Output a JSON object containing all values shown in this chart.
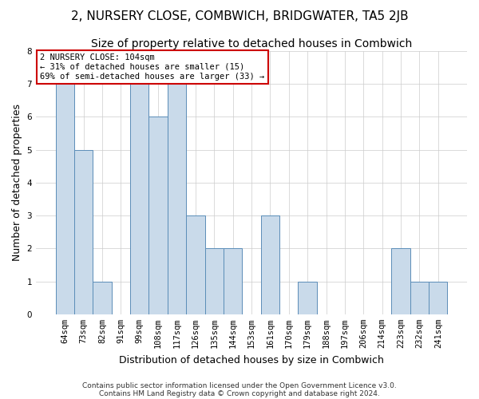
{
  "title": "2, NURSERY CLOSE, COMBWICH, BRIDGWATER, TA5 2JB",
  "subtitle": "Size of property relative to detached houses in Combwich",
  "xlabel": "Distribution of detached houses by size in Combwich",
  "ylabel": "Number of detached properties",
  "categories": [
    "64sqm",
    "73sqm",
    "82sqm",
    "91sqm",
    "99sqm",
    "108sqm",
    "117sqm",
    "126sqm",
    "135sqm",
    "144sqm",
    "153sqm",
    "161sqm",
    "170sqm",
    "179sqm",
    "188sqm",
    "197sqm",
    "206sqm",
    "214sqm",
    "223sqm",
    "232sqm",
    "241sqm"
  ],
  "values": [
    7,
    5,
    1,
    0,
    7,
    6,
    7,
    3,
    2,
    2,
    0,
    3,
    0,
    1,
    0,
    0,
    0,
    0,
    2,
    1,
    1
  ],
  "bar_color": "#c9daea",
  "bar_edge_color": "#5b8db8",
  "annotation_box_text": "2 NURSERY CLOSE: 104sqm\n← 31% of detached houses are smaller (15)\n69% of semi-detached houses are larger (33) →",
  "annotation_box_color": "#ffffff",
  "annotation_box_edge_color": "#cc0000",
  "ylim": [
    0,
    8
  ],
  "yticks": [
    0,
    1,
    2,
    3,
    4,
    5,
    6,
    7,
    8
  ],
  "footnote_line1": "Contains HM Land Registry data © Crown copyright and database right 2024.",
  "footnote_line2": "Contains public sector information licensed under the Open Government Licence v3.0.",
  "bg_color": "#ffffff",
  "grid_color": "#cccccc",
  "title_fontsize": 11,
  "subtitle_fontsize": 10,
  "ylabel_fontsize": 9,
  "xlabel_fontsize": 9,
  "tick_fontsize": 7.5,
  "annot_fontsize": 7.5,
  "footnote_fontsize": 6.5
}
